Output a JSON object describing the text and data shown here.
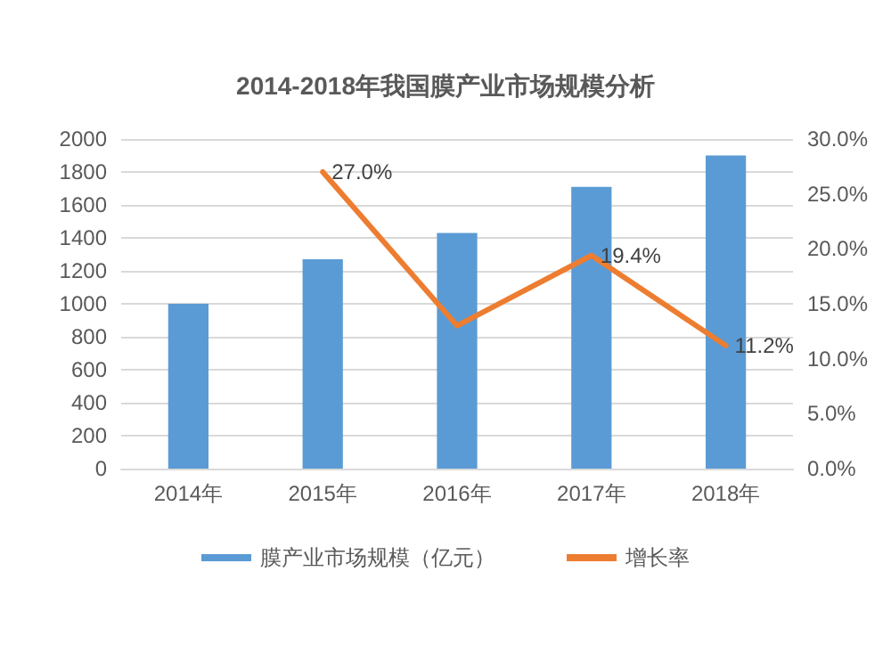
{
  "chart_data": {
    "type": "bar",
    "title": "2014-2018年我国膜产业市场规模分析",
    "categories": [
      "2014年",
      "2015年",
      "2016年",
      "2017年",
      "2018年"
    ],
    "series": [
      {
        "name": "膜产业市场规模（亿元）",
        "color": "#5b9bd5",
        "values": [
          1000,
          1270,
          1430,
          1710,
          1900
        ]
      },
      {
        "name": "增长率",
        "type": "line",
        "axis": "y2",
        "color": "#ed7d31",
        "values": [
          null,
          27.0,
          13.0,
          19.4,
          11.2
        ],
        "value_labels": [
          null,
          "27.0%",
          null,
          "19.4%",
          "11.2%"
        ]
      }
    ],
    "ylim": [
      0,
      2000
    ],
    "yticks": [
      0,
      200,
      400,
      600,
      800,
      1000,
      1200,
      1400,
      1600,
      1800,
      2000
    ],
    "y2lim": [
      0,
      30
    ],
    "y2ticks": [
      {
        "value": 0,
        "label": "0.0%"
      },
      {
        "value": 5,
        "label": "5.0%"
      },
      {
        "value": 10,
        "label": "10.0%"
      },
      {
        "value": 15,
        "label": "15.0%"
      },
      {
        "value": 20,
        "label": "20.0%"
      },
      {
        "value": 25,
        "label": "25.0%"
      },
      {
        "value": 30,
        "label": "30.0%"
      }
    ],
    "grid": "y",
    "legend": "bottom",
    "marker": "none"
  }
}
